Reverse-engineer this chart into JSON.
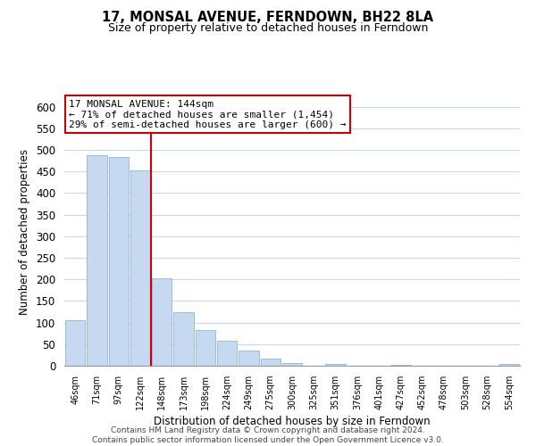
{
  "title": "17, MONSAL AVENUE, FERNDOWN, BH22 8LA",
  "subtitle": "Size of property relative to detached houses in Ferndown",
  "xlabel": "Distribution of detached houses by size in Ferndown",
  "ylabel": "Number of detached properties",
  "bar_labels": [
    "46sqm",
    "71sqm",
    "97sqm",
    "122sqm",
    "148sqm",
    "173sqm",
    "198sqm",
    "224sqm",
    "249sqm",
    "275sqm",
    "300sqm",
    "325sqm",
    "351sqm",
    "376sqm",
    "401sqm",
    "427sqm",
    "452sqm",
    "478sqm",
    "503sqm",
    "528sqm",
    "554sqm"
  ],
  "bar_values": [
    105,
    487,
    484,
    452,
    202,
    124,
    83,
    57,
    35,
    17,
    7,
    0,
    5,
    0,
    0,
    3,
    0,
    0,
    0,
    0,
    5
  ],
  "bar_color": "#c6d9f0",
  "bar_edge_color": "#8db4e2",
  "vline_index": 4,
  "vline_color": "#cc0000",
  "annotation_title": "17 MONSAL AVENUE: 144sqm",
  "annotation_line1": "← 71% of detached houses are smaller (1,454)",
  "annotation_line2": "29% of semi-detached houses are larger (600) →",
  "annotation_box_color": "#ffffff",
  "annotation_box_edge": "#cc0000",
  "ylim": [
    0,
    620
  ],
  "yticks": [
    0,
    50,
    100,
    150,
    200,
    250,
    300,
    350,
    400,
    450,
    500,
    550,
    600
  ],
  "footer_line1": "Contains HM Land Registry data © Crown copyright and database right 2024.",
  "footer_line2": "Contains public sector information licensed under the Open Government Licence v3.0.",
  "background_color": "#ffffff",
  "grid_color": "#c8d8e8"
}
